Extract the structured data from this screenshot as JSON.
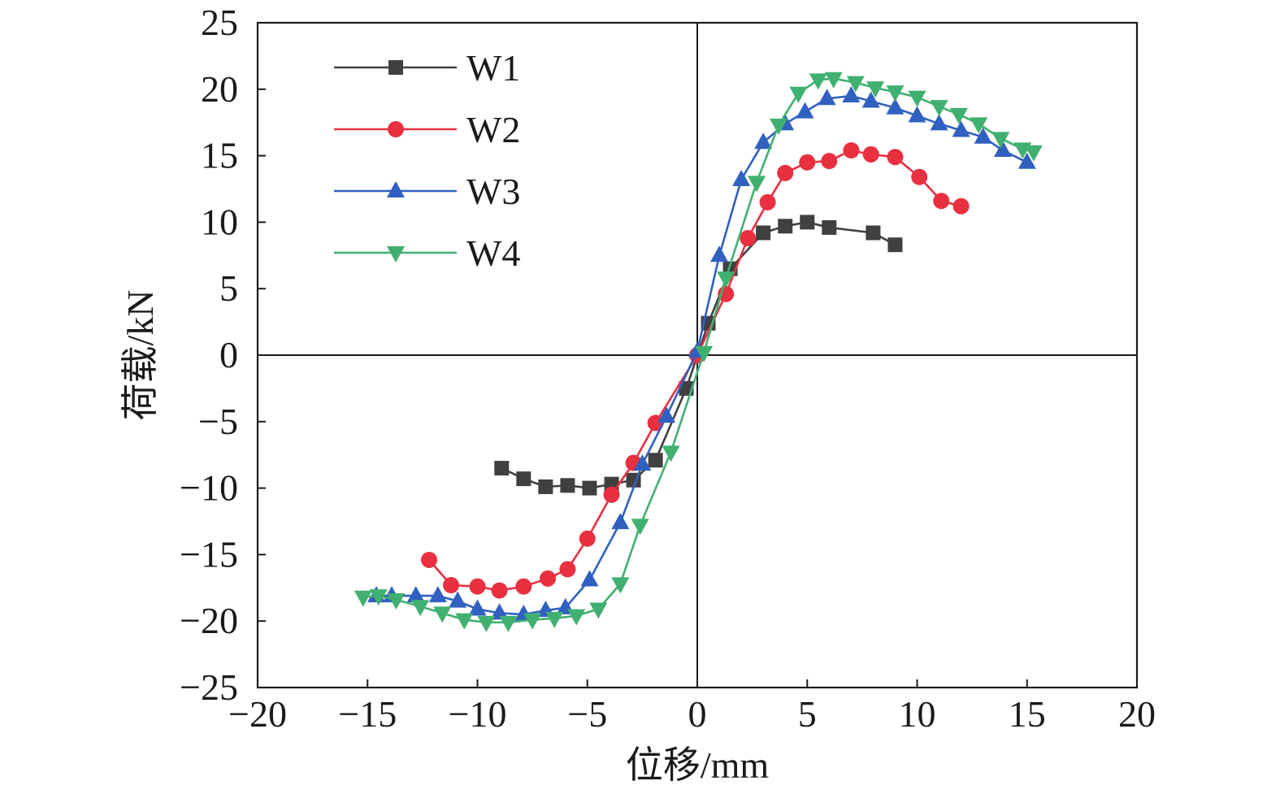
{
  "chart_data": {
    "type": "line",
    "title": "",
    "xlabel": "位移/mm",
    "ylabel": "荷载/kN",
    "xlim": [
      -20,
      20
    ],
    "ylim": [
      -25,
      25
    ],
    "xticks": [
      -20,
      -15,
      -10,
      -5,
      0,
      5,
      10,
      15,
      20
    ],
    "yticks": [
      -25,
      -20,
      -15,
      -10,
      -5,
      0,
      5,
      10,
      15,
      20,
      25
    ],
    "xtick_labels": [
      "−20",
      "−15",
      "−10",
      "−5",
      "0",
      "5",
      "10",
      "15",
      "20"
    ],
    "ytick_labels": [
      "−25",
      "−20",
      "−15",
      "−10",
      "−5",
      "0",
      "5",
      "10",
      "15",
      "20",
      "25"
    ],
    "grid": false,
    "legend_position": "top-left",
    "series": [
      {
        "name": "W1",
        "color": "#404040",
        "marker": "square",
        "points": [
          [
            -8.9,
            -8.5
          ],
          [
            -7.9,
            -9.3
          ],
          [
            -6.9,
            -9.9
          ],
          [
            -5.9,
            -9.8
          ],
          [
            -4.9,
            -10.0
          ],
          [
            -3.9,
            -9.7
          ],
          [
            -2.9,
            -9.4
          ],
          [
            -1.9,
            -7.9
          ],
          [
            -0.5,
            -2.5
          ],
          [
            0.5,
            2.4
          ],
          [
            1.5,
            6.5
          ],
          [
            3.0,
            9.2
          ],
          [
            4.0,
            9.7
          ],
          [
            5.0,
            10.0
          ],
          [
            6.0,
            9.6
          ],
          [
            8.0,
            9.2
          ],
          [
            9.0,
            8.3
          ]
        ]
      },
      {
        "name": "W2",
        "color": "#e83040",
        "marker": "circle",
        "points": [
          [
            -12.2,
            -15.4
          ],
          [
            -11.2,
            -17.3
          ],
          [
            -10.0,
            -17.4
          ],
          [
            -9.0,
            -17.7
          ],
          [
            -7.9,
            -17.4
          ],
          [
            -6.8,
            -16.8
          ],
          [
            -5.9,
            -16.1
          ],
          [
            -5.0,
            -13.8
          ],
          [
            -3.9,
            -10.5
          ],
          [
            -2.9,
            -8.1
          ],
          [
            -1.9,
            -5.1
          ],
          [
            0.0,
            0.0
          ],
          [
            1.3,
            4.6
          ],
          [
            2.3,
            8.8
          ],
          [
            3.2,
            11.5
          ],
          [
            4.0,
            13.7
          ],
          [
            5.0,
            14.5
          ],
          [
            6.0,
            14.6
          ],
          [
            7.0,
            15.4
          ],
          [
            7.9,
            15.1
          ],
          [
            9.0,
            14.9
          ],
          [
            10.1,
            13.4
          ],
          [
            11.1,
            11.6
          ],
          [
            12.0,
            11.2
          ]
        ]
      },
      {
        "name": "W3",
        "color": "#3060c0",
        "marker": "triangle-up",
        "points": [
          [
            -14.6,
            -18.1
          ],
          [
            -13.9,
            -18.1
          ],
          [
            -12.8,
            -18.1
          ],
          [
            -11.8,
            -18.1
          ],
          [
            -10.9,
            -18.5
          ],
          [
            -10.0,
            -19.1
          ],
          [
            -9.0,
            -19.4
          ],
          [
            -7.9,
            -19.5
          ],
          [
            -6.9,
            -19.2
          ],
          [
            -6.0,
            -19.0
          ],
          [
            -4.9,
            -16.9
          ],
          [
            -3.5,
            -12.6
          ],
          [
            -2.5,
            -8.2
          ],
          [
            -1.4,
            -4.6
          ],
          [
            0.0,
            0.3
          ],
          [
            1.0,
            7.5
          ],
          [
            2.0,
            13.2
          ],
          [
            3.0,
            16.0
          ],
          [
            4.0,
            17.4
          ],
          [
            4.9,
            18.3
          ],
          [
            5.9,
            19.3
          ],
          [
            7.0,
            19.5
          ],
          [
            7.9,
            19.1
          ],
          [
            9.0,
            18.6
          ],
          [
            10.0,
            18.0
          ],
          [
            11.0,
            17.4
          ],
          [
            12.0,
            16.9
          ],
          [
            13.0,
            16.4
          ],
          [
            13.9,
            15.4
          ],
          [
            15.0,
            14.5
          ]
        ]
      },
      {
        "name": "W4",
        "color": "#40b070",
        "marker": "triangle-down",
        "points": [
          [
            -15.2,
            -18.2
          ],
          [
            -14.5,
            -18.1
          ],
          [
            -13.7,
            -18.4
          ],
          [
            -12.6,
            -18.9
          ],
          [
            -11.6,
            -19.4
          ],
          [
            -10.6,
            -19.9
          ],
          [
            -9.6,
            -20.1
          ],
          [
            -8.6,
            -20.1
          ],
          [
            -7.5,
            -19.9
          ],
          [
            -6.5,
            -19.8
          ],
          [
            -5.5,
            -19.6
          ],
          [
            -4.5,
            -19.1
          ],
          [
            -3.5,
            -17.2
          ],
          [
            -2.6,
            -12.8
          ],
          [
            -1.2,
            -7.3
          ],
          [
            0.3,
            0.2
          ],
          [
            1.3,
            5.8
          ],
          [
            2.7,
            13.0
          ],
          [
            3.7,
            17.3
          ],
          [
            4.6,
            19.7
          ],
          [
            5.5,
            20.7
          ],
          [
            6.2,
            20.8
          ],
          [
            7.2,
            20.5
          ],
          [
            8.1,
            20.1
          ],
          [
            9.0,
            19.8
          ],
          [
            10.0,
            19.4
          ],
          [
            11.0,
            18.7
          ],
          [
            11.9,
            18.1
          ],
          [
            12.8,
            17.4
          ],
          [
            13.8,
            16.3
          ],
          [
            14.8,
            15.5
          ],
          [
            15.3,
            15.3
          ]
        ]
      }
    ]
  }
}
